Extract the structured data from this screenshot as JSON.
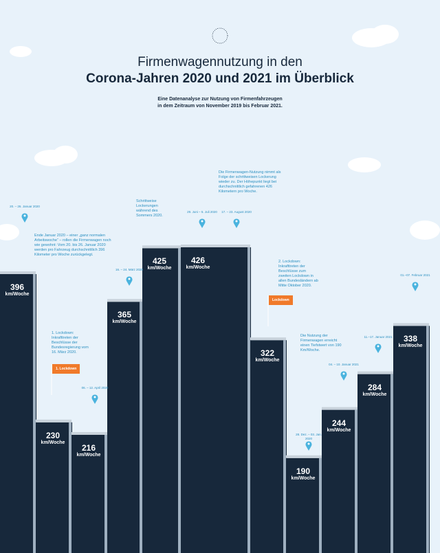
{
  "title_line1": "Firmenwagennutzung in den",
  "title_line2": "Corona-Jahren 2020 und 2021 im Überblick",
  "subtitle_line1": "Eine Datenanalyse zur Nutzung von Firmenfahrzeugen",
  "subtitle_line2": "in dem Zeitraum von November 2019 bis Februar 2021.",
  "chart_data": {
    "type": "step",
    "categories": [
      null,
      null,
      null,
      null,
      null,
      null,
      null,
      null,
      null,
      null,
      null
    ],
    "values": [
      396,
      230,
      216,
      365,
      425,
      426,
      322,
      190,
      244,
      284,
      338
    ],
    "unit": "km/Woche",
    "color": "#17283b",
    "pins": [
      "20. – 26. Januar 2020",
      "16. – 24. März 2020",
      "06. – 12. April 2020",
      "29. Juni – 5. Juli 2020",
      "17. – 23. August 2020",
      "28. Dez. – 03. Jan. 2020",
      "04. – 10. Januar 2021",
      "11.–17. Januar 2021",
      "01.–07. Februar 2021"
    ],
    "notes": [
      "Ende Januar 2020 – einer „ganz normalen Arbeitswoche“ – rollen die Firmenwagen noch wie gewohnt: Vom 20. bis 26. Januar 2020 werden pro Fahrzeug durchschnittlich 396 Kilometer pro Woche zurückgelegt.",
      "1. Lockdown: Inkrafttreten der Beschlüsse der Bundesregierung vom 16. März 2020.",
      "Schrittweise Lockerungen während des Sommers 2020.",
      "Die Firmenwagen-Nutzung nimmt als Folge der schrittweisen Lockerung wieder zu. Der Höhepunkt liegt bei durchschnittlich gefahrenen 426 Kilometern pro Woche.",
      "2. Lockdown: Inkrafttreten der Beschlüsse zum zweiten Lockdown in allen Bundesländern ab Mitte Oktober 2020.",
      "Die Nutzung der Firmenwagen erreicht einen Tiefstwert von 190 Km/Woche."
    ],
    "flags": [
      "1. Lockdown",
      "Lockdown"
    ]
  }
}
